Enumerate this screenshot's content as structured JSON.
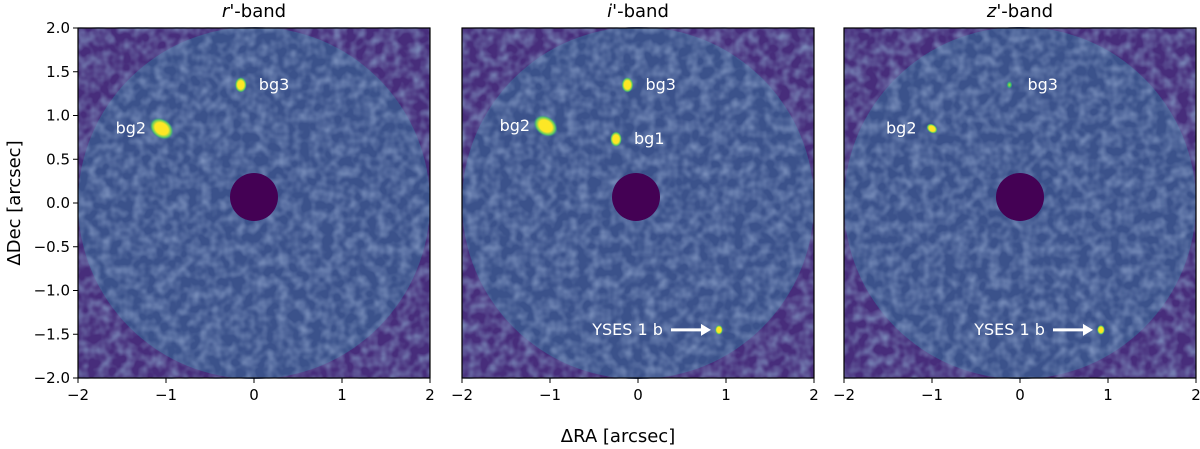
{
  "figure": {
    "xlabel": "ΔRA [arcsec]",
    "ylabel": "ΔDec [arcsec]",
    "x_ticks": [
      "−2",
      "−1",
      "0",
      "1",
      "2"
    ],
    "y_ticks": [
      "2.0",
      "1.5",
      "1.0",
      "0.5",
      "0.0",
      "−0.5",
      "−1.0",
      "−1.5",
      "−2.0"
    ]
  },
  "chart_data": [
    {
      "type": "heatmap",
      "title_italic": "r",
      "title_rest": "'-band",
      "xlim": [
        -2,
        2
      ],
      "ylim": [
        -2,
        2
      ],
      "sources": [
        {
          "label": "bg2",
          "x": -1.05,
          "y": 0.85
        },
        {
          "label": "bg3",
          "x": -0.15,
          "y": 1.35
        }
      ],
      "arrow_label": ""
    },
    {
      "type": "heatmap",
      "title_italic": "i",
      "title_rest": "'-band",
      "xlim": [
        -2,
        2
      ],
      "ylim": [
        -2,
        2
      ],
      "sources": [
        {
          "label": "bg2",
          "x": -1.05,
          "y": 0.88
        },
        {
          "label": "bg3",
          "x": -0.12,
          "y": 1.35
        },
        {
          "label": "bg1",
          "x": -0.25,
          "y": 0.73
        }
      ],
      "companion": {
        "x": 0.92,
        "y": -1.45
      },
      "arrow_label": "YSES 1 b"
    },
    {
      "type": "heatmap",
      "title_italic": "z",
      "title_rest": "'-band",
      "xlim": [
        -2,
        2
      ],
      "ylim": [
        -2,
        2
      ],
      "sources": [
        {
          "label": "bg2",
          "x": -1.0,
          "y": 0.85
        },
        {
          "label": "bg3",
          "x": -0.12,
          "y": 1.35
        }
      ],
      "companion": {
        "x": 0.92,
        "y": -1.45
      },
      "arrow_label": "YSES 1 b"
    }
  ],
  "colors": {
    "background": "#472d7b",
    "field": "#3b528b",
    "bright": "#fde725",
    "mid": "#35b779",
    "low": "#21918c",
    "mask": "#440154"
  }
}
